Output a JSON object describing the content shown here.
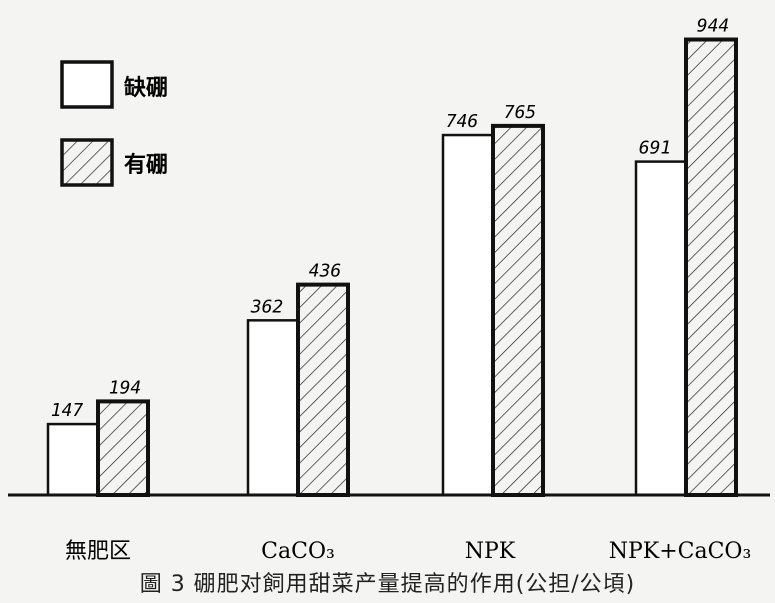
{
  "chart_data": {
    "type": "bar",
    "categories": [
      "無肥区",
      "CaCO₃",
      "NPK",
      "NPK+CaCO₃"
    ],
    "series": [
      {
        "name": "缺硼",
        "values": [
          147,
          362,
          746,
          691
        ],
        "labels": [
          "147",
          "362",
          "746",
          "691"
        ],
        "pattern": "open"
      },
      {
        "name": "有硼",
        "values": [
          194,
          436,
          765,
          944
        ],
        "labels": [
          "194",
          "436",
          "765",
          "944"
        ],
        "pattern": "hatched"
      }
    ],
    "title": "圖 3 硼肥对飼用甜菜产量提高的作用(公担/公頃)",
    "ylim": [
      0,
      1000
    ],
    "grid": false,
    "legend": "top-left"
  }
}
